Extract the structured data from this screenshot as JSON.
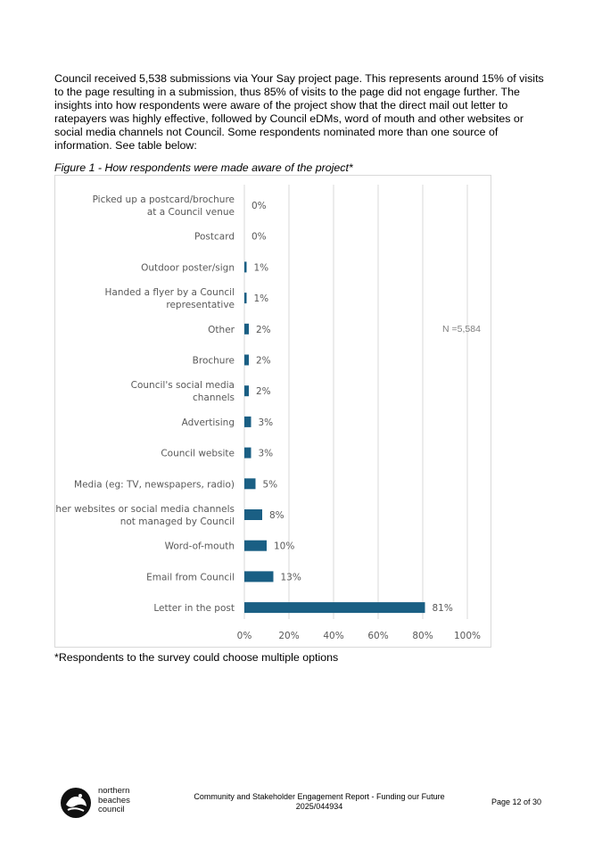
{
  "body": {
    "paragraph": "Council received 5,538 submissions via Your Say project page. This represents around 15% of visits to the page resulting in a submission, thus 85% of visits to the page did not engage further. The insights into how respondents were aware of the project show that the direct mail out letter to ratepayers was highly effective, followed by Council eDMs, word of mouth and other websites or social media channels not Council. Some respondents nominated more than one source of information. See table below:",
    "figure_caption": "Figure 1 - How respondents were made aware of the project*",
    "footnote": "*Respondents to the survey could choose multiple options"
  },
  "chart_data": {
    "type": "bar",
    "orientation": "horizontal",
    "categories": [
      [
        "Picked up a postcard/brochure",
        "at a Council venue"
      ],
      [
        "Postcard"
      ],
      [
        "Outdoor poster/sign"
      ],
      [
        "Handed a flyer by a Council",
        "representative"
      ],
      [
        "Other"
      ],
      [
        "Brochure"
      ],
      [
        "Council's social media",
        "channels"
      ],
      [
        "Advertising"
      ],
      [
        "Council website"
      ],
      [
        "Media (eg: TV, newspapers, radio)"
      ],
      [
        "Other websites or social media channels",
        "not managed by Council"
      ],
      [
        "Word-of-mouth"
      ],
      [
        "Email from Council"
      ],
      [
        "Letter in the post"
      ]
    ],
    "values": [
      0,
      0,
      1,
      1,
      2,
      2,
      2,
      3,
      3,
      5,
      8,
      10,
      13,
      81
    ],
    "value_labels": [
      "0%",
      "0%",
      "1%",
      "1%",
      "2%",
      "2%",
      "2%",
      "3%",
      "3%",
      "5%",
      "8%",
      "10%",
      "13%",
      "81%"
    ],
    "xlim": [
      0,
      100
    ],
    "x_ticks": [
      "0%",
      "20%",
      "40%",
      "60%",
      "80%",
      "100%"
    ],
    "x_tick_values": [
      0,
      20,
      40,
      60,
      80,
      100
    ],
    "grid": true,
    "annotation": "N =5,584",
    "bar_color": "#1a5f84",
    "grid_color": "#d9d9d9",
    "label_color": "#595959"
  },
  "footer": {
    "logo_line1": "northern",
    "logo_line2": "beaches",
    "logo_line3": "council",
    "title": "Community and Stakeholder Engagement Report - Funding our Future",
    "doc_number": "2025/044934",
    "page": "Page 12 of 30"
  }
}
